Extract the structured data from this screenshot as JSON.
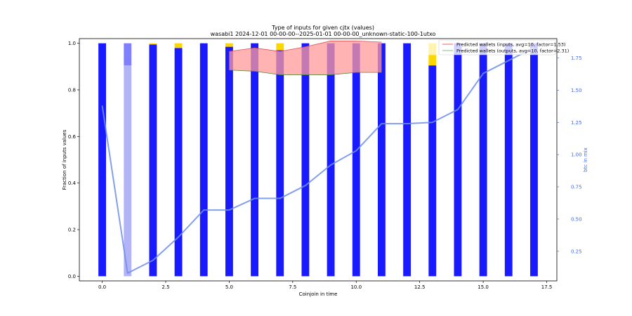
{
  "chart_data": {
    "type": "bar",
    "title": "Type of inputs for given cjtx (values)",
    "subtitle": "wasabi1 2024-12-01 00-00-00--2025-01-01 00-00-00_unknown-static-100-1utxo",
    "xlabel": "Coinjoin in time",
    "ylabel": "Fraction of inputs values",
    "ylabel_right": "btc in mix",
    "xlim": [
      -0.9,
      17.9
    ],
    "ylim": [
      -0.02,
      1.02
    ],
    "ylim_right": [
      0.02,
      1.9
    ],
    "x_ticks": [
      0.0,
      2.5,
      5.0,
      7.5,
      10.0,
      12.5,
      15.0,
      17.5
    ],
    "x_tick_labels": [
      "0.0",
      "2.5",
      "5.0",
      "7.5",
      "10.0",
      "12.5",
      "15.0",
      "17.5"
    ],
    "y_ticks": [
      0.0,
      0.2,
      0.4,
      0.6,
      0.8,
      1.0
    ],
    "y_tick_labels": [
      "0.0",
      "0.2",
      "0.4",
      "0.6",
      "0.8",
      "1.0"
    ],
    "y_ticks_right": [
      0.25,
      0.5,
      0.75,
      1.0,
      1.25,
      1.5,
      1.75
    ],
    "y_tick_labels_right": [
      "0.25",
      "0.50",
      "0.75",
      "1.00",
      "1.25",
      "1.50",
      "1.75"
    ],
    "x": [
      0,
      1,
      2,
      3,
      4,
      5,
      6,
      7,
      8,
      9,
      10,
      11,
      12,
      13,
      14,
      15,
      16,
      17
    ],
    "stack_series": [
      {
        "color": "#1a1aff",
        "values": [
          1.0,
          0.0,
          0.995,
          0.98,
          1.0,
          0.985,
          1.0,
          0.97,
          1.0,
          1.0,
          1.0,
          1.0,
          1.0,
          0.905,
          1.0,
          1.0,
          1.0,
          1.0
        ]
      },
      {
        "color": "#b3b3f7",
        "values": [
          0.0,
          0.905,
          0.0,
          0.0,
          0.0,
          0.0,
          0.0,
          0.0,
          0.0,
          0.0,
          0.0,
          0.0,
          0.0,
          0.0,
          0.0,
          0.0,
          0.0,
          0.0
        ]
      },
      {
        "color": "#8080ff",
        "values": [
          0.0,
          0.095,
          0.0,
          0.0,
          0.0,
          0.0,
          0.0,
          0.0,
          0.0,
          0.0,
          0.0,
          0.0,
          0.0,
          0.0,
          0.0,
          0.0,
          0.0,
          0.0
        ]
      },
      {
        "color": "#ffd700",
        "values": [
          0.0,
          0.0,
          0.005,
          0.02,
          0.0,
          0.015,
          0.0,
          0.03,
          0.0,
          0.0,
          0.0,
          0.0,
          0.0,
          0.045,
          0.0,
          0.0,
          0.0,
          0.0
        ]
      },
      {
        "color": "#fff3b0",
        "values": [
          0.0,
          0.0,
          0.0,
          0.0,
          0.0,
          0.0,
          0.0,
          0.0,
          0.0,
          0.0,
          0.0,
          0.0,
          0.0,
          0.05,
          0.0,
          0.0,
          0.0,
          0.0
        ]
      }
    ],
    "bar_width": 0.3,
    "btc_in_mix": {
      "color": "#6f8fe6",
      "x": [
        0,
        1,
        2,
        3,
        4,
        5,
        6,
        7,
        8,
        9,
        10,
        11,
        12,
        13,
        14,
        15,
        16,
        17
      ],
      "values": [
        1.38,
        0.08,
        0.18,
        0.36,
        0.57,
        0.57,
        0.66,
        0.66,
        0.76,
        0.92,
        1.03,
        1.24,
        1.24,
        1.25,
        1.35,
        1.63,
        1.73,
        1.83
      ]
    },
    "predicted_band": {
      "x": [
        5,
        6,
        7,
        8,
        9,
        10,
        11
      ],
      "upper": [
        0.965,
        0.98,
        0.965,
        0.985,
        1.01,
        1.01,
        1.005
      ],
      "lower": [
        0.885,
        0.88,
        0.865,
        0.865,
        0.865,
        0.875,
        0.875
      ],
      "fill": "#ff9999",
      "upper_color": "#e05050",
      "lower_color": "#5a8a3a"
    },
    "legend": [
      {
        "label": "Predicted wallets (inputs, avg=10, factor=1.53)",
        "color": "#f08080"
      },
      {
        "label": "Predicted wallets (outputs, avg=10, factor=2.31)",
        "color": "#90d090"
      }
    ],
    "legend_position": "top-right",
    "grid": false
  }
}
